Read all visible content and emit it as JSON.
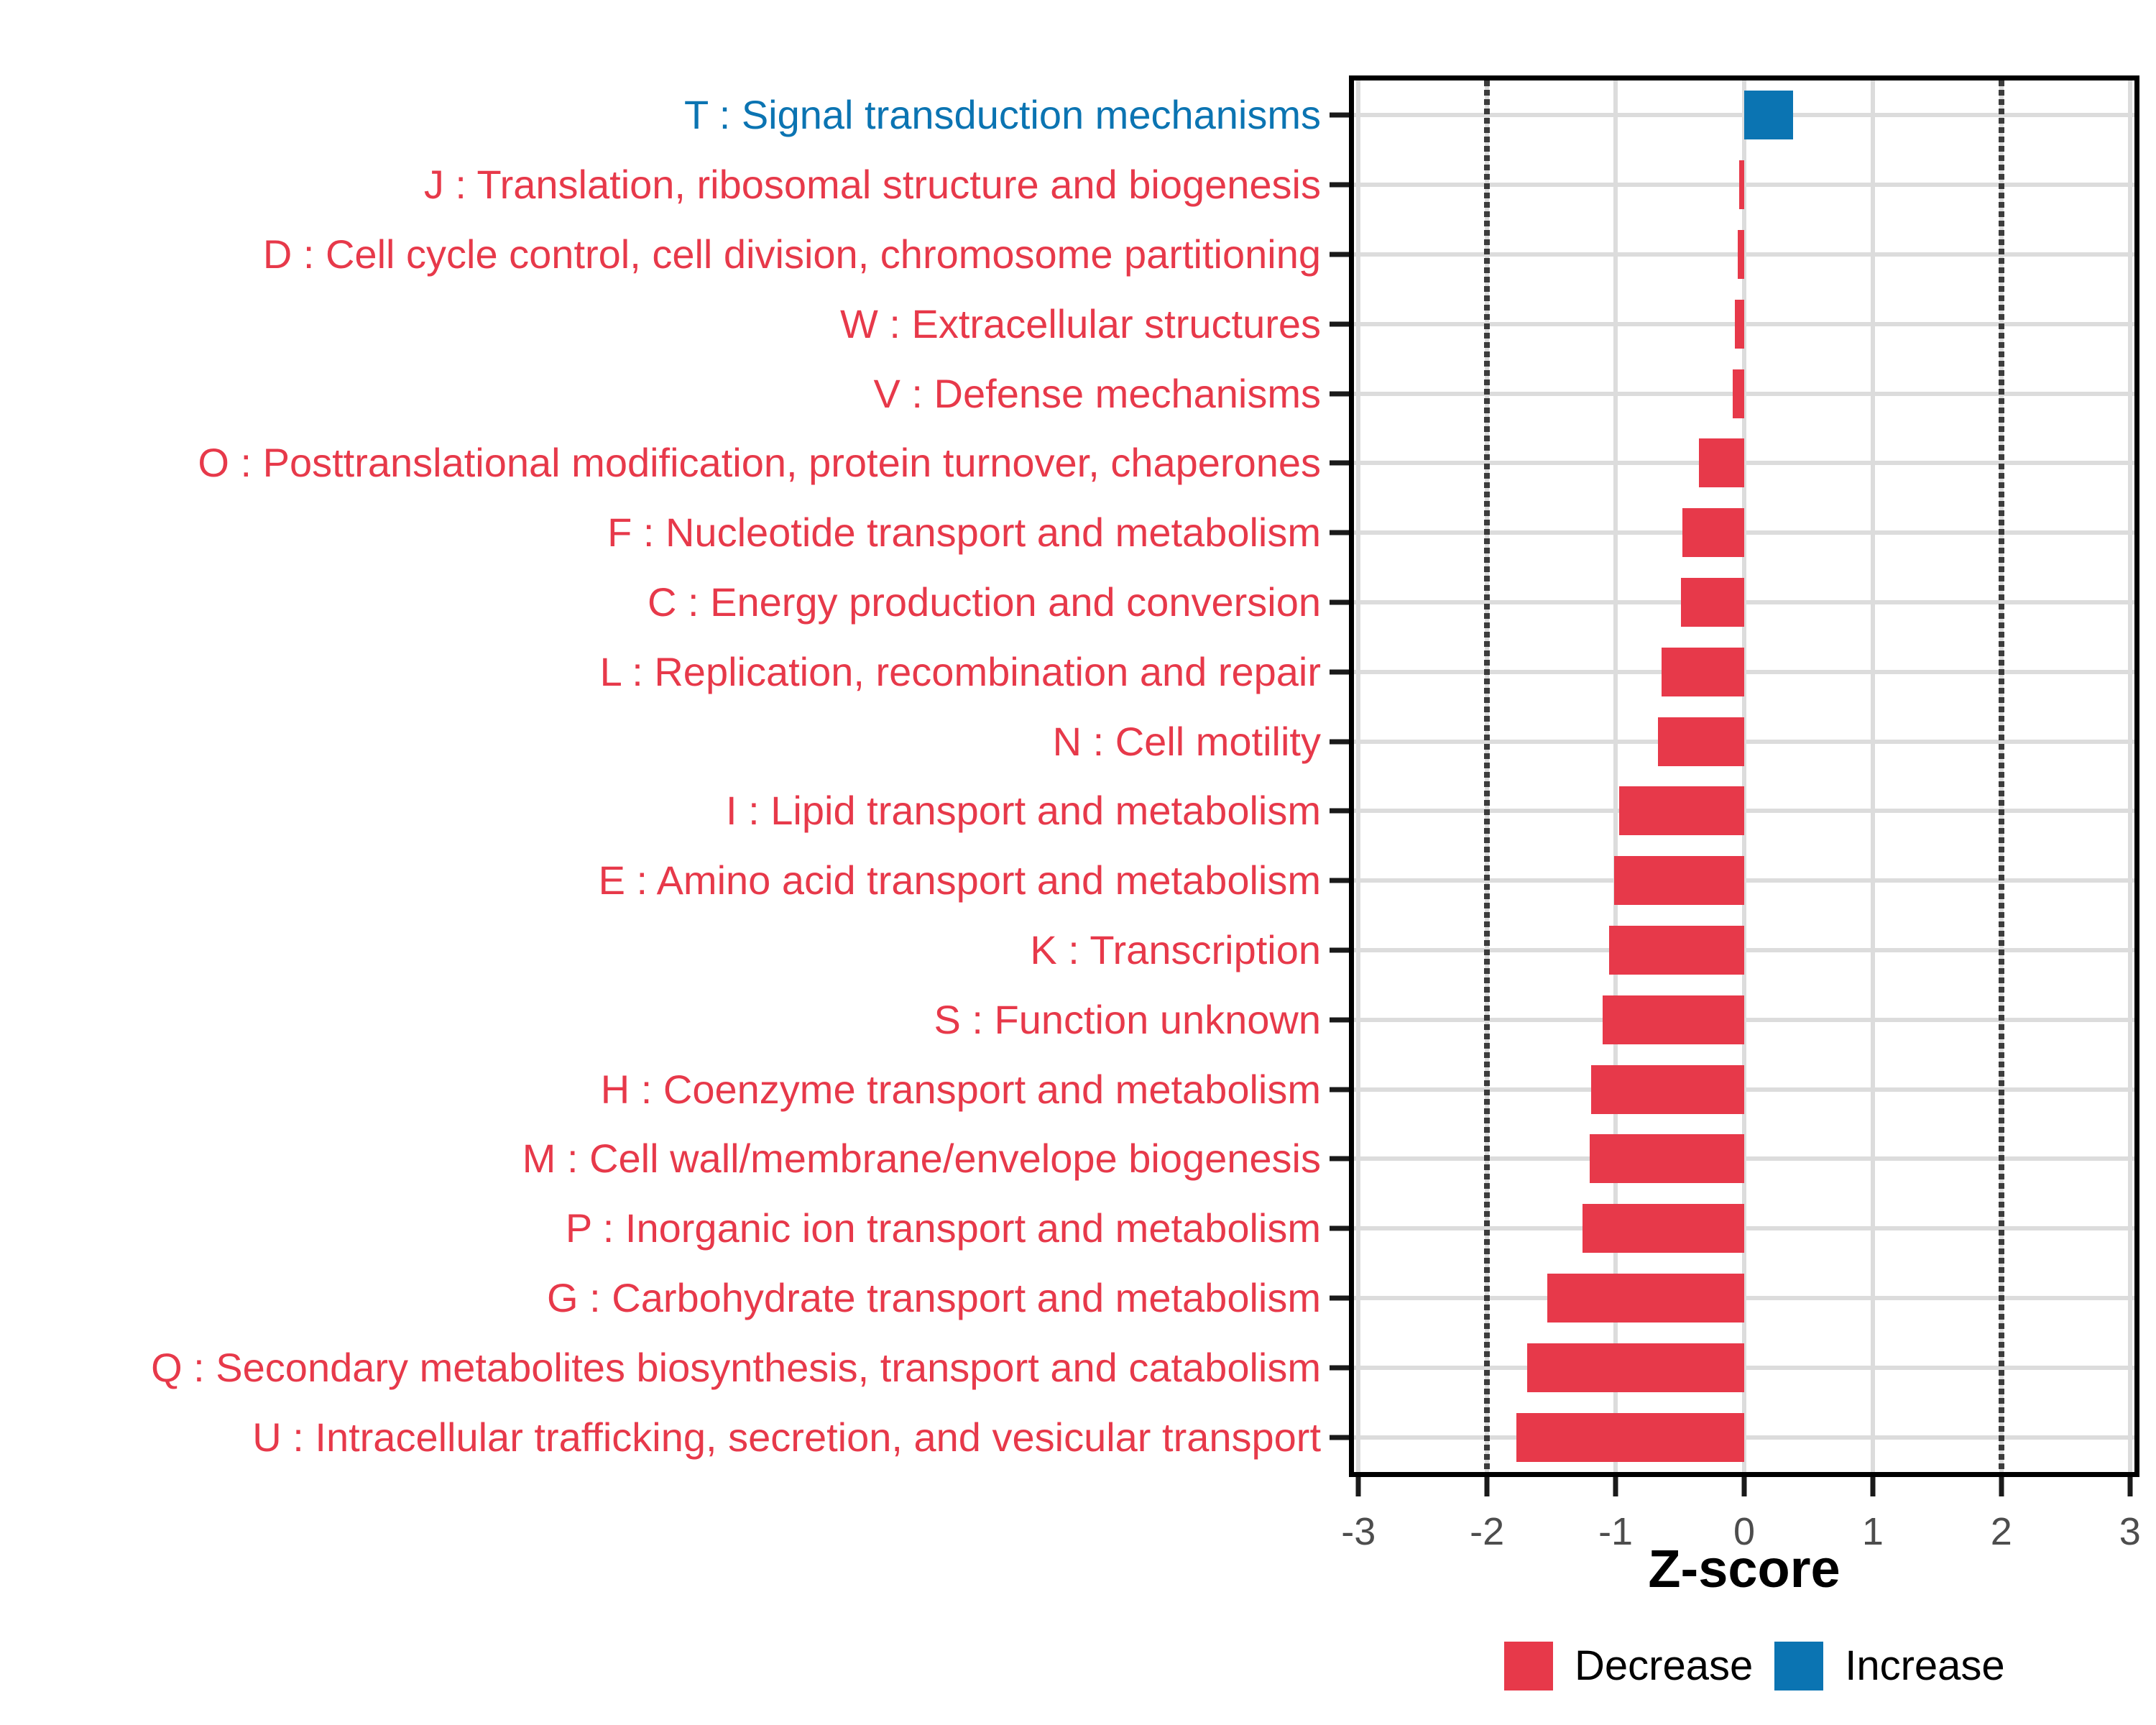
{
  "colors": {
    "decrease": "#E7394A",
    "increase": "#0B74B2",
    "grid": "#DCDCDC",
    "reference_line": "#3C3C3C",
    "axis_text": "#4D4D4D",
    "axis_title": "#000000",
    "panel_border": "#000000"
  },
  "chart_data": {
    "type": "bar",
    "orientation": "horizontal",
    "xlabel": "Z-score",
    "xlim": [
      -3.035,
      3.035
    ],
    "xticks": [
      -3,
      -2,
      -1,
      0,
      1,
      2,
      3
    ],
    "reference_lines": [
      -2,
      2
    ],
    "grid": true,
    "legend_position": "bottom-right",
    "legend": {
      "entries": [
        {
          "label": "Decrease",
          "color_key": "decrease"
        },
        {
          "label": "Increase",
          "color_key": "increase"
        }
      ]
    },
    "categories": [
      {
        "label": "T : Signal transduction mechanisms",
        "value": 0.38
      },
      {
        "label": "J : Translation, ribosomal structure and biogenesis",
        "value": -0.04
      },
      {
        "label": "D : Cell cycle control, cell division, chromosome partitioning",
        "value": -0.05
      },
      {
        "label": "W : Extracellular structures",
        "value": -0.07
      },
      {
        "label": "V : Defense mechanisms",
        "value": -0.09
      },
      {
        "label": "O : Posttranslational modification, protein turnover, chaperones",
        "value": -0.35
      },
      {
        "label": "F : Nucleotide transport and metabolism",
        "value": -0.48
      },
      {
        "label": "C : Energy production and conversion",
        "value": -0.49
      },
      {
        "label": "L : Replication, recombination and repair",
        "value": -0.64
      },
      {
        "label": "N : Cell motility",
        "value": -0.67
      },
      {
        "label": "I : Lipid transport and metabolism",
        "value": -0.97
      },
      {
        "label": "E : Amino acid transport and metabolism",
        "value": -1.01
      },
      {
        "label": "K : Transcription",
        "value": -1.05
      },
      {
        "label": "S : Function unknown",
        "value": -1.1
      },
      {
        "label": "H : Coenzyme transport and metabolism",
        "value": -1.19
      },
      {
        "label": "M : Cell wall/membrane/envelope biogenesis",
        "value": -1.2
      },
      {
        "label": "P : Inorganic ion transport and metabolism",
        "value": -1.26
      },
      {
        "label": "G : Carbohydrate transport and metabolism",
        "value": -1.53
      },
      {
        "label": "Q : Secondary metabolites biosynthesis, transport and catabolism",
        "value": -1.69
      },
      {
        "label": "U : Intracellular trafficking, secretion, and vesicular transport",
        "value": -1.77
      }
    ]
  }
}
